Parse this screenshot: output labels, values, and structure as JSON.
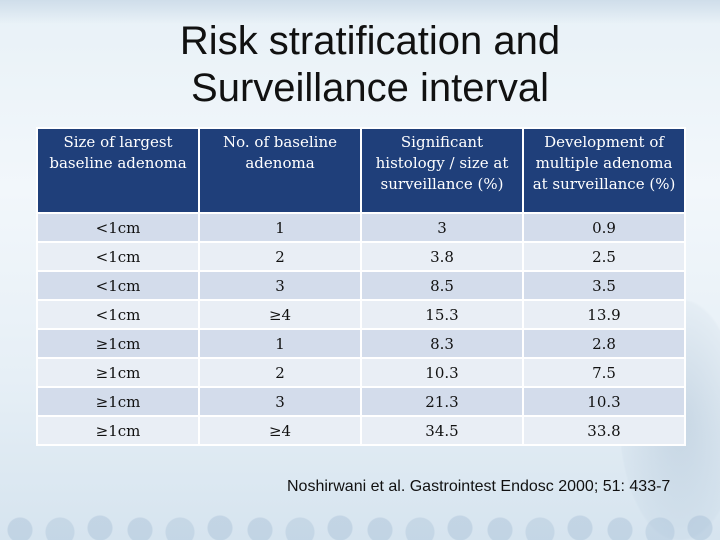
{
  "title": {
    "line1": "Risk stratification and",
    "line2": "Surveillance interval"
  },
  "table": {
    "headers": [
      "Size of largest baseline adenoma",
      "No. of baseline adenoma",
      "Significant histology / size at surveillance (%)",
      "Development of multiple adenoma at surveillance (%)"
    ],
    "rows": [
      [
        "<1cm",
        "1",
        "3",
        "0.9"
      ],
      [
        "<1cm",
        "2",
        "3.8",
        "2.5"
      ],
      [
        "<1cm",
        "3",
        "8.5",
        "3.5"
      ],
      [
        "<1cm",
        "≥4",
        "15.3",
        "13.9"
      ],
      [
        "≥1cm",
        "1",
        "8.3",
        "2.8"
      ],
      [
        "≥1cm",
        "2",
        "10.3",
        "7.5"
      ],
      [
        "≥1cm",
        "3",
        "21.3",
        "10.3"
      ],
      [
        "≥1cm",
        "≥4",
        "34.5",
        "33.8"
      ]
    ]
  },
  "citation": "Noshirwani et al. Gastrointest Endosc 2000; 51: 433-7",
  "colors": {
    "header_bg": "#1f3f7a",
    "row_odd": "#d3dceb",
    "row_even": "#e9eef5"
  }
}
